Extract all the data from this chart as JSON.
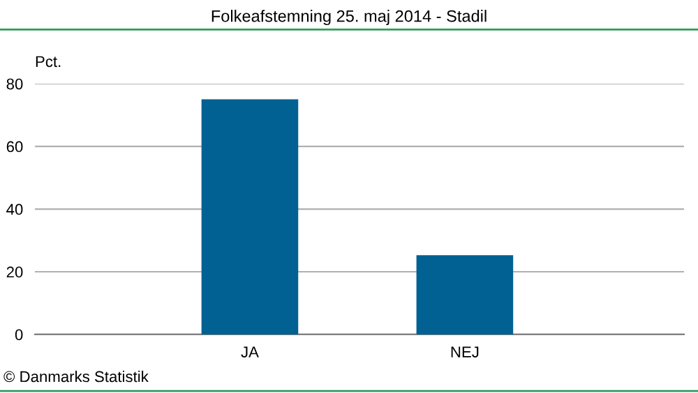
{
  "chart_data": {
    "type": "bar",
    "title": "Folkeafstemning 25. maj 2014 - Stadil",
    "ylabel": "Pct.",
    "categories": [
      "JA",
      "NEJ"
    ],
    "values": [
      75,
      25.3
    ],
    "color": "#006192",
    "ylim": [
      0,
      80
    ],
    "yticks": [
      0,
      20,
      40,
      60,
      80
    ],
    "grid": "y",
    "legend": false,
    "annotations": [
      "© Danmarks Statistik"
    ]
  }
}
